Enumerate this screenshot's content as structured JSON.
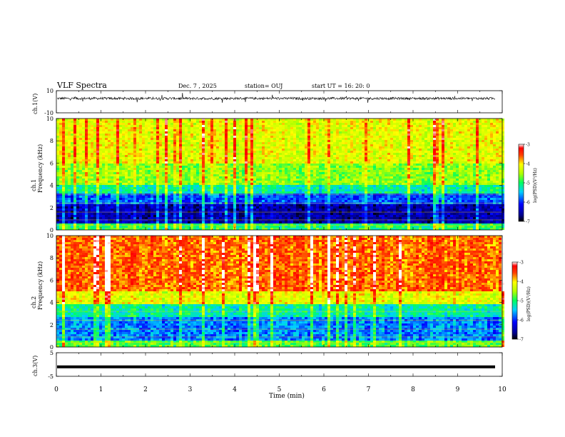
{
  "header": {
    "title": "VLF Spectra",
    "date": "Dec. 7 , 2025",
    "station": "station= OUJ",
    "start": "start UT = 16: 20: 0"
  },
  "chart_data": [
    {
      "type": "line",
      "panel": "ch1-waveform",
      "ylabel": "ch.1(V)",
      "ylim": [
        -10,
        10
      ],
      "yticks": [
        "10",
        "-10"
      ],
      "xlim": [
        0,
        10
      ],
      "description_level": 3,
      "series": [
        {
          "values": [
            3
          ]
        }
      ]
    },
    {
      "type": "heatmap",
      "panel": "ch1-spectrogram",
      "ylabel": "ch.1\nFrequency (kHz)",
      "ylim": [
        0,
        10
      ],
      "yticks": [
        "0",
        "2",
        "4",
        "6",
        "8",
        "10"
      ],
      "xlim": [
        0,
        10
      ],
      "colorbar": {
        "label": "log(PSD)(V²/Hz)",
        "range": [
          -7,
          -3
        ],
        "ticks": [
          "-3",
          "-4",
          "-5",
          "-6",
          "-7"
        ]
      }
    },
    {
      "type": "heatmap",
      "panel": "ch2-spectrogram",
      "ylabel": "ch.2\nFrequency (kHz)",
      "ylim": [
        0,
        10
      ],
      "yticks": [
        "0",
        "2",
        "4",
        "6",
        "8",
        "10"
      ],
      "xlim": [
        0,
        10
      ],
      "colorbar": {
        "label": "log(PSD)(V²/Hz)",
        "range": [
          -7,
          -3
        ],
        "ticks": [
          "-3",
          "-4",
          "-5",
          "-6",
          "-7"
        ]
      }
    },
    {
      "type": "line",
      "panel": "ch3-waveform",
      "ylabel": "ch.3(V)",
      "ylim": [
        -5,
        5
      ],
      "yticks": [
        "5",
        "-5"
      ],
      "xlim": [
        0,
        10
      ],
      "series": [
        {
          "values": [
            -1
          ]
        }
      ]
    }
  ],
  "xaxis": {
    "label": "Time (min)",
    "ticks": [
      "0",
      "1",
      "2",
      "3",
      "4",
      "5",
      "6",
      "7",
      "8",
      "9",
      "10"
    ]
  }
}
